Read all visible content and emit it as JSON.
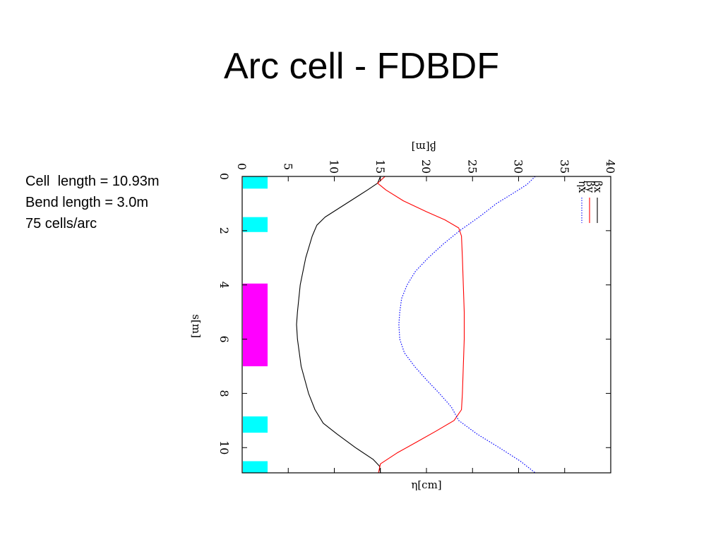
{
  "slide": {
    "title": "Arc cell - FDBDF",
    "params": [
      "Cell  length = 10.93m",
      "Bend length = 3.0m",
      "75 cells/arc"
    ]
  },
  "colors": {
    "quad": "#00ffff",
    "dipole": "#ff00ff",
    "beta_x": "#000000",
    "beta_y": "#ff0000",
    "eta_x": "#0000ff"
  },
  "chart_data": {
    "type": "line",
    "orientation": "rotated-90",
    "title": "",
    "xlabel": "s[m]",
    "ylabel_top": "β[m]",
    "ylabel_bottom": "η[cm]",
    "xlim": [
      0,
      10.93
    ],
    "ylim": [
      0,
      40
    ],
    "x_ticks": [
      0,
      2,
      4,
      6,
      8,
      10
    ],
    "y_ticks": [
      0,
      5,
      10,
      15,
      20,
      25,
      30,
      35,
      40
    ],
    "grid": false,
    "legend_position": "top-right",
    "magnets": [
      {
        "type": "quad",
        "s": [
          0,
          0.45
        ]
      },
      {
        "type": "quad",
        "s": [
          1.5,
          2.05
        ]
      },
      {
        "type": "dipole",
        "s": [
          3.95,
          7.0
        ]
      },
      {
        "type": "quad",
        "s": [
          8.85,
          9.45
        ]
      },
      {
        "type": "quad",
        "s": [
          10.5,
          10.93
        ]
      }
    ],
    "series": [
      {
        "name": "βx",
        "style": "solid",
        "x": [
          0,
          0.25,
          0.5,
          1.0,
          1.5,
          1.8,
          2.2,
          3.0,
          4.0,
          5.0,
          5.46,
          6.0,
          7.0,
          8.0,
          8.6,
          9.1,
          9.5,
          10.0,
          10.43,
          10.68,
          10.93
        ],
        "y": [
          15.0,
          14.7,
          13.6,
          11.3,
          9.0,
          8.1,
          7.6,
          6.9,
          6.3,
          6.0,
          5.9,
          6.0,
          6.4,
          7.2,
          7.9,
          8.8,
          10.3,
          12.3,
          14.2,
          14.9,
          15.0
        ]
      },
      {
        "name": "βy",
        "style": "solid",
        "x": [
          0,
          0.25,
          0.5,
          0.9,
          1.3,
          1.6,
          1.9,
          2.2,
          3.0,
          4.0,
          5.0,
          6.0,
          7.0,
          8.0,
          8.6,
          9.0,
          9.4,
          9.8,
          10.2,
          10.6,
          10.93
        ],
        "y": [
          15.5,
          14.7,
          15.6,
          17.5,
          20.0,
          22.0,
          23.5,
          23.8,
          23.9,
          24.0,
          24.1,
          24.1,
          24.0,
          23.9,
          23.8,
          23.0,
          21.0,
          18.9,
          16.8,
          15.0,
          14.8
        ]
      },
      {
        "name": "ηx",
        "style": "dotted",
        "x": [
          0,
          0.3,
          0.6,
          1.0,
          1.5,
          2.0,
          2.5,
          3.0,
          3.5,
          4.0,
          4.5,
          5.0,
          5.46,
          6.0,
          6.5,
          7.0,
          7.5,
          8.0,
          8.5,
          9.0,
          9.5,
          10.0,
          10.5,
          10.93
        ],
        "y": [
          31.8,
          30.9,
          29.5,
          27.6,
          25.7,
          23.6,
          21.8,
          20.2,
          18.8,
          17.9,
          17.3,
          17.1,
          17.0,
          17.1,
          17.6,
          18.7,
          20.0,
          21.4,
          22.7,
          23.5,
          25.5,
          27.9,
          30.2,
          31.8
        ]
      }
    ]
  }
}
